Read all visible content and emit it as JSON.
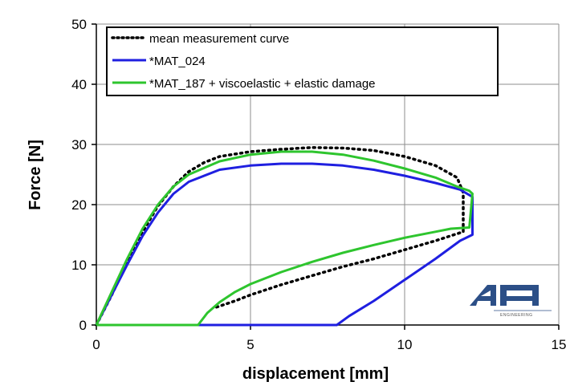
{
  "chart_data": {
    "type": "line",
    "xlabel": "displacement [mm]",
    "ylabel": "Force [N]",
    "xlim": [
      0,
      15
    ],
    "ylim": [
      0,
      50
    ],
    "x_ticks": [
      "0",
      "5",
      "10",
      "15"
    ],
    "y_ticks": [
      "0",
      "10",
      "20",
      "30",
      "40",
      "50"
    ],
    "grid": true,
    "legend_position": "top",
    "series": [
      {
        "name": "mean measurement curve",
        "color": "#000000",
        "style": "dotted",
        "points": [
          [
            0,
            0
          ],
          [
            0.5,
            5
          ],
          [
            1,
            10.5
          ],
          [
            1.5,
            15.5
          ],
          [
            2,
            19.8
          ],
          [
            2.5,
            23
          ],
          [
            3,
            25.5
          ],
          [
            3.5,
            27
          ],
          [
            4,
            28
          ],
          [
            5,
            28.8
          ],
          [
            6,
            29.2
          ],
          [
            7,
            29.5
          ],
          [
            8,
            29.4
          ],
          [
            9,
            29
          ],
          [
            10,
            28
          ],
          [
            11,
            26.5
          ],
          [
            11.7,
            24.5
          ],
          [
            11.9,
            22
          ],
          [
            11.9,
            15.5
          ],
          [
            11,
            14
          ],
          [
            10,
            12.5
          ],
          [
            9,
            11
          ],
          [
            8,
            9.7
          ],
          [
            7,
            8.2
          ],
          [
            6,
            6.7
          ],
          [
            5,
            5
          ],
          [
            4.5,
            4
          ],
          [
            3.8,
            2.8
          ]
        ]
      },
      {
        "name": "*MAT_024",
        "color": "#1f1fe0",
        "style": "solid",
        "points": [
          [
            0,
            0
          ],
          [
            0.5,
            5
          ],
          [
            1,
            10
          ],
          [
            1.5,
            14.8
          ],
          [
            2,
            18.7
          ],
          [
            2.5,
            21.8
          ],
          [
            3,
            23.8
          ],
          [
            4,
            25.8
          ],
          [
            5,
            26.5
          ],
          [
            6,
            26.8
          ],
          [
            7,
            26.8
          ],
          [
            8,
            26.5
          ],
          [
            9,
            25.8
          ],
          [
            10,
            24.8
          ],
          [
            11,
            23.6
          ],
          [
            11.8,
            22.5
          ],
          [
            12.2,
            21.3
          ],
          [
            12.2,
            15
          ],
          [
            11.8,
            14
          ],
          [
            11,
            11
          ],
          [
            10,
            7.5
          ],
          [
            9,
            4
          ],
          [
            8.2,
            1.5
          ],
          [
            7.8,
            0
          ],
          [
            7.6,
            0
          ],
          [
            0,
            0
          ]
        ]
      },
      {
        "name": "*MAT_187 + viscoelastic + elastic damage",
        "color": "#2ec52e",
        "style": "solid",
        "points": [
          [
            0,
            0
          ],
          [
            0.5,
            5.5
          ],
          [
            1,
            11
          ],
          [
            1.5,
            16
          ],
          [
            2,
            20
          ],
          [
            2.5,
            23
          ],
          [
            3,
            25
          ],
          [
            4,
            27.2
          ],
          [
            5,
            28.3
          ],
          [
            6,
            28.8
          ],
          [
            7,
            28.8
          ],
          [
            8,
            28.3
          ],
          [
            9,
            27.3
          ],
          [
            10,
            26
          ],
          [
            11,
            24.5
          ],
          [
            11.7,
            23
          ],
          [
            12.1,
            22.3
          ],
          [
            12.2,
            21.8
          ],
          [
            12.1,
            16.2
          ],
          [
            11.5,
            16
          ],
          [
            11,
            15.5
          ],
          [
            10,
            14.5
          ],
          [
            9,
            13.3
          ],
          [
            8,
            12
          ],
          [
            7,
            10.5
          ],
          [
            6,
            8.8
          ],
          [
            5,
            6.8
          ],
          [
            4.5,
            5.5
          ],
          [
            4,
            3.8
          ],
          [
            3.6,
            2
          ],
          [
            3.3,
            0
          ],
          [
            0,
            0
          ]
        ]
      }
    ]
  },
  "logo": {
    "text": "ENGINEERING"
  }
}
